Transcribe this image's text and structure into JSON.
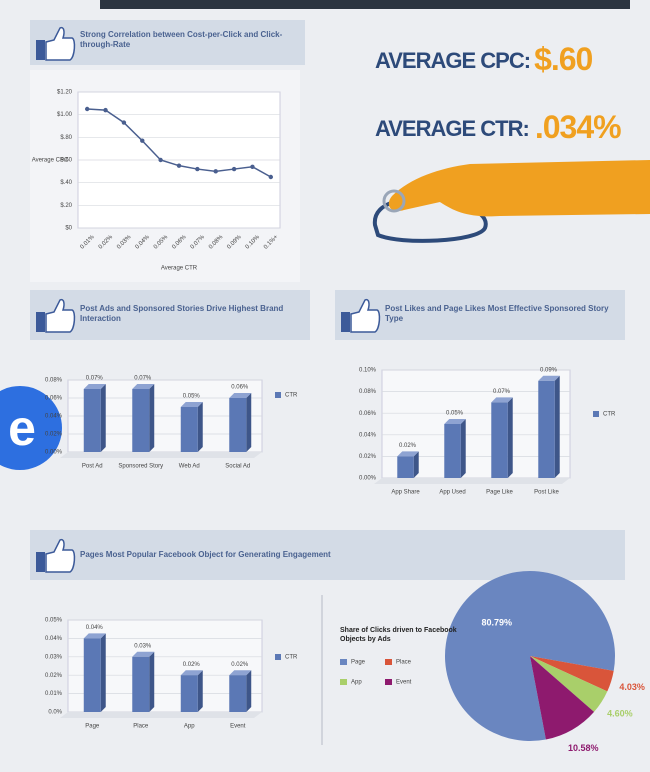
{
  "logo": "e",
  "stats": [
    {
      "label": "AVERAGE CPC:",
      "value": "$.60"
    },
    {
      "label": "AVERAGE CTR:",
      "value": ".034%"
    }
  ],
  "chart_data": [
    {
      "type": "line",
      "title": "Strong Correlation between Cost-per-Click and Click-through-Rate",
      "x_label": "Average CTR",
      "y_label": "Average CPC",
      "categories": [
        "0.01%",
        "0.02%",
        "0.03%",
        "0.04%",
        "0.05%",
        "0.06%",
        "0.07%",
        "0.08%",
        "0.09%",
        "0.10%",
        "0.1%+"
      ],
      "values": [
        1.05,
        1.04,
        0.93,
        0.77,
        0.6,
        0.55,
        0.52,
        0.5,
        0.52,
        0.54,
        0.45
      ],
      "color": "#4a5f8f",
      "ylim": [
        0,
        1.2
      ],
      "yticks": [
        {
          "value": 0,
          "label": "$0"
        },
        {
          "value": 0.2,
          "label": "$.20"
        },
        {
          "value": 0.4,
          "label": "$.40"
        },
        {
          "value": 0.6,
          "label": "$.60"
        },
        {
          "value": 0.8,
          "label": "$.80"
        },
        {
          "value": 1,
          "label": "$1.00"
        },
        {
          "value": 1.2,
          "label": "$1.20"
        }
      ],
      "grid": true
    },
    {
      "type": "bar",
      "title": "Post Ads and Sponsored Stories Drive Highest Brand Interaction",
      "categories": [
        "Post Ad",
        "Sponsored Story",
        "Web Ad",
        "Social Ad"
      ],
      "series": [
        {
          "name": "CTR",
          "color": "#5b78b5",
          "values": [
            0.07,
            0.07,
            0.05,
            0.06
          ],
          "value_labels": [
            "0.07%",
            "0.07%",
            "0.05%",
            "0.06%"
          ]
        }
      ],
      "ylim": [
        0,
        0.08
      ],
      "yticks": [
        {
          "value": 0,
          "label": "0.00%"
        },
        {
          "value": 0.02,
          "label": "0.02%"
        },
        {
          "value": 0.04,
          "label": "0.04%"
        },
        {
          "value": 0.06,
          "label": "0.06%"
        },
        {
          "value": 0.08,
          "label": "0.08%"
        }
      ],
      "grid": true
    },
    {
      "type": "bar",
      "title": "Post Likes and Page Likes Most Effective Sponsored Story Type",
      "categories": [
        "App Share",
        "App Used",
        "Page Like",
        "Post Like"
      ],
      "series": [
        {
          "name": "CTR",
          "color": "#5b78b5",
          "values": [
            0.02,
            0.05,
            0.07,
            0.09
          ],
          "value_labels": [
            "0.02%",
            "0.05%",
            "0.07%",
            "0.09%"
          ]
        }
      ],
      "ylim": [
        0,
        0.1
      ],
      "yticks": [
        {
          "value": 0,
          "label": "0.00%"
        },
        {
          "value": 0.02,
          "label": "0.02%"
        },
        {
          "value": 0.04,
          "label": "0.04%"
        },
        {
          "value": 0.06,
          "label": "0.06%"
        },
        {
          "value": 0.08,
          "label": "0.08%"
        },
        {
          "value": 0.1,
          "label": "0.10%"
        }
      ],
      "grid": true
    },
    {
      "type": "bar",
      "title": "Pages Most Popular Facebook Object for Generating Engagement",
      "categories": [
        "Page",
        "Place",
        "App",
        "Event"
      ],
      "series": [
        {
          "name": "CTR",
          "color": "#5b78b5",
          "values": [
            0.04,
            0.03,
            0.02,
            0.02
          ],
          "value_labels": [
            "0.04%",
            "0.03%",
            "0.02%",
            "0.02%"
          ]
        }
      ],
      "ylim": [
        0,
        0.05
      ],
      "yticks": [
        {
          "value": 0,
          "label": "0.0%"
        },
        {
          "value": 0.01,
          "label": "0.01%"
        },
        {
          "value": 0.02,
          "label": "0.02%"
        },
        {
          "value": 0.03,
          "label": "0.03%"
        },
        {
          "value": 0.04,
          "label": "0.04%"
        },
        {
          "value": 0.05,
          "label": "0.05%"
        }
      ],
      "grid": true
    },
    {
      "type": "pie",
      "title": "Share of Clicks driven to Facebook Objects by Ads",
      "categories": [
        "Page",
        "Place",
        "App",
        "Event"
      ],
      "values": [
        80.79,
        4.03,
        4.6,
        10.58
      ],
      "value_labels": [
        "80.79%",
        "4.03%",
        "4.60%",
        "10.58%"
      ],
      "colors": [
        "#6a86c0",
        "#d9553a",
        "#a9cf6a",
        "#8e1a6e"
      ]
    }
  ]
}
